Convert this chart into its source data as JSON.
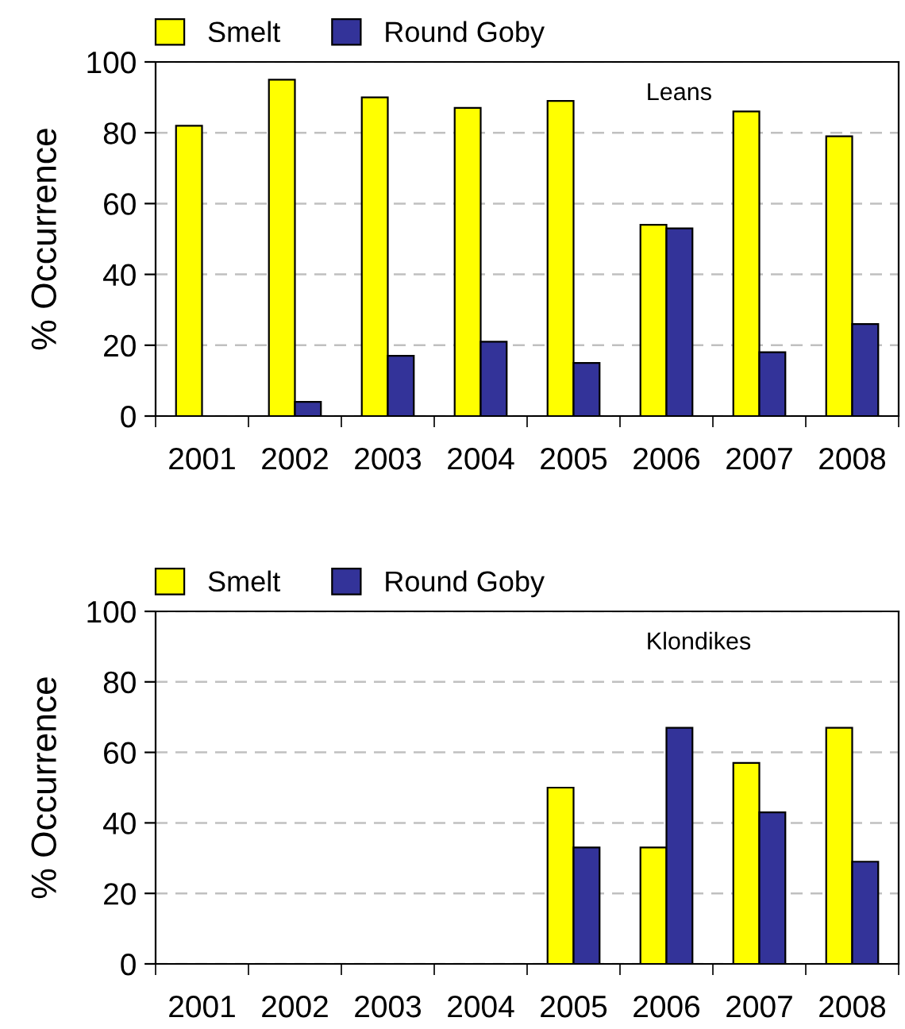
{
  "chart_data": [
    {
      "type": "bar",
      "ylabel": "% Occurrence",
      "annotations": [
        "Leans"
      ],
      "categories": [
        "2001",
        "2002",
        "2003",
        "2004",
        "2005",
        "2006",
        "2007",
        "2008"
      ],
      "series": [
        {
          "name": "Smelt",
          "color": "#ffff00",
          "values": [
            82,
            95,
            90,
            87,
            89,
            54,
            86,
            79
          ]
        },
        {
          "name": "Round Goby",
          "color": "#333399",
          "values": [
            null,
            4,
            17,
            21,
            15,
            53,
            18,
            26
          ]
        }
      ],
      "ylim": [
        0,
        100
      ],
      "yticks": [
        0,
        20,
        40,
        60,
        80,
        100
      ],
      "grid": "y",
      "legend": "top left"
    },
    {
      "type": "bar",
      "ylabel": "% Occurrence",
      "annotations": [
        "Klondikes"
      ],
      "categories": [
        "2001",
        "2002",
        "2003",
        "2004",
        "2005",
        "2006",
        "2007",
        "2008"
      ],
      "series": [
        {
          "name": "Smelt",
          "color": "#ffff00",
          "values": [
            null,
            null,
            null,
            null,
            50,
            33,
            57,
            67
          ]
        },
        {
          "name": "Round Goby",
          "color": "#333399",
          "values": [
            null,
            null,
            null,
            null,
            33,
            67,
            43,
            29
          ]
        }
      ],
      "ylim": [
        0,
        100
      ],
      "yticks": [
        0,
        20,
        40,
        60,
        80,
        100
      ],
      "grid": "y",
      "legend": "top left"
    }
  ]
}
